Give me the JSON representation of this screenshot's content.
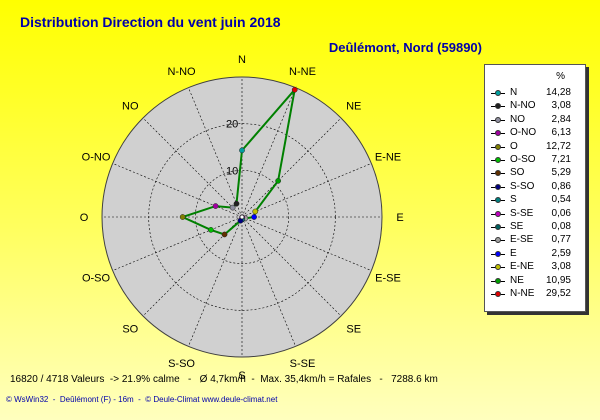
{
  "title": "Distribution Direction du vent   juin 2018",
  "subtitle": "Deûlémont, Nord (59890)",
  "legend_header": "%",
  "stats_line": "16820 / 4718 Valeurs  -> 21.9% calme   -   Ø 4,7km/h  -  Max. 35,4km/h = Rafales   -   7288.6 km",
  "footer": "© WsWin32  -  Deûlémont (F) - 16m  -  © Deule-Climat www.deule-climat.net",
  "chart_data": {
    "type": "radar",
    "title": "Distribution Direction du vent   juin 2018",
    "unit": "%",
    "rlim": [
      0,
      30
    ],
    "r_ticks": [
      10,
      20
    ],
    "grid": true,
    "legend_placement": "right",
    "line_color": "#008000",
    "directions": [
      "N",
      "N-NE",
      "NE",
      "E-NE",
      "E",
      "E-SE",
      "SE",
      "S-SE",
      "S",
      "S-SO",
      "SO",
      "O-SO",
      "O",
      "O-NO",
      "NO",
      "N-NO"
    ],
    "values": {
      "N": 14.28,
      "N-NE": 29.52,
      "NE": 10.95,
      "E-NE": 3.08,
      "E": 2.59,
      "E-SE": 0.77,
      "SE": 0.08,
      "S-SE": 0.06,
      "S": 0.54,
      "S-SO": 0.86,
      "SO": 5.29,
      "O-SO": 7.21,
      "O": 12.72,
      "O-NO": 6.13,
      "NO": 2.84,
      "N-NO": 3.08
    },
    "legend": [
      {
        "label": "N",
        "value": "14,28",
        "color": "#00a0a0"
      },
      {
        "label": "N-NO",
        "value": "3,08",
        "color": "#202020"
      },
      {
        "label": "NO",
        "value": "2,84",
        "color": "#9090a0"
      },
      {
        "label": "O-NO",
        "value": "6,13",
        "color": "#a000a0"
      },
      {
        "label": "O",
        "value": "12,72",
        "color": "#808000"
      },
      {
        "label": "O-SO",
        "value": "7,21",
        "color": "#00c000"
      },
      {
        "label": "SO",
        "value": "5,29",
        "color": "#603000"
      },
      {
        "label": "S-SO",
        "value": "0,86",
        "color": "#000080"
      },
      {
        "label": "S",
        "value": "0,54",
        "color": "#008080"
      },
      {
        "label": "S-SE",
        "value": "0,06",
        "color": "#c000c0"
      },
      {
        "label": "SE",
        "value": "0,08",
        "color": "#006060"
      },
      {
        "label": "E-SE",
        "value": "0,77",
        "color": "#a0a0a0"
      },
      {
        "label": "E",
        "value": "2,59",
        "color": "#0000ff"
      },
      {
        "label": "E-NE",
        "value": "3,08",
        "color": "#c0c000"
      },
      {
        "label": "NE",
        "value": "10,95",
        "color": "#00a000"
      },
      {
        "label": "N-NE",
        "value": "29,52",
        "color": "#e00000"
      }
    ]
  }
}
